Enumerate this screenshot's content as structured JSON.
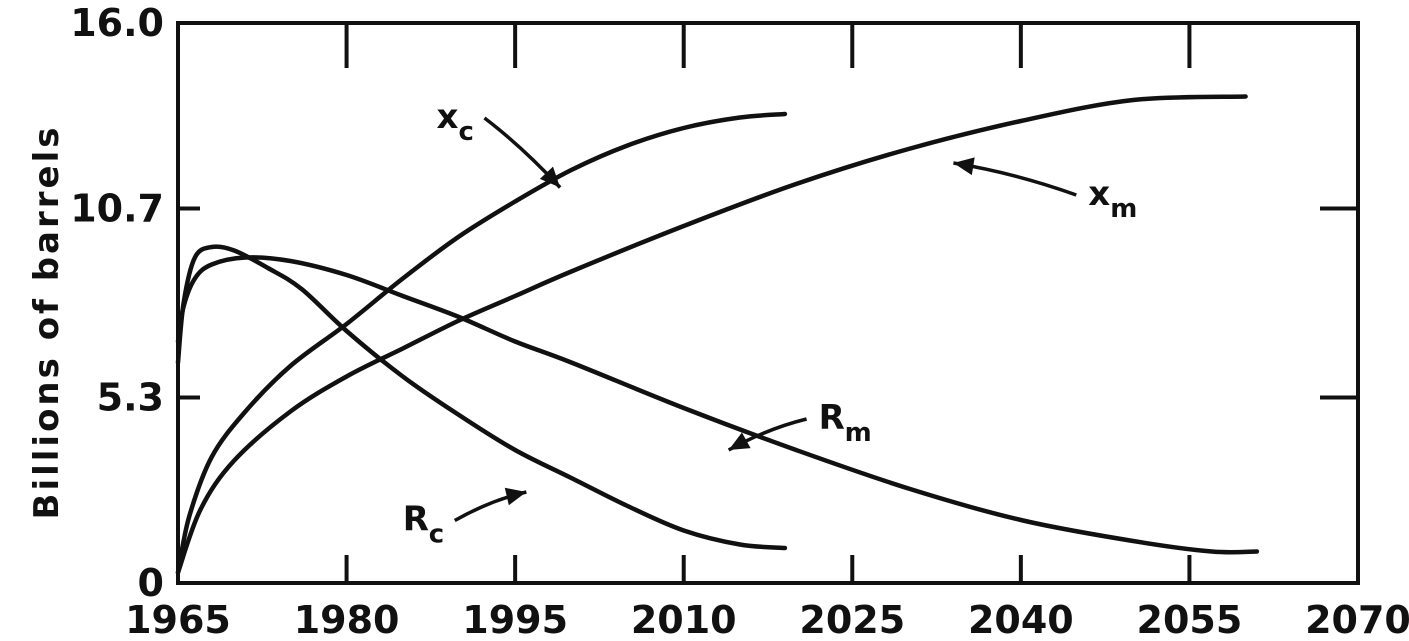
{
  "chart_data": {
    "type": "line",
    "title": "",
    "xlabel": "",
    "ylabel": "Billions of barrels",
    "xlim": [
      1965,
      2070
    ],
    "ylim": [
      0,
      16.0
    ],
    "x_ticks": [
      "1965",
      "1980",
      "1995",
      "2010",
      "2025",
      "2040",
      "2055",
      "2070"
    ],
    "y_ticks": [
      "0",
      "5.3",
      "10.7",
      "16.0"
    ],
    "grid": false,
    "legend": "none",
    "series": [
      {
        "name": "x_c",
        "label_main": "x",
        "label_sub": "c",
        "x": [
          1965,
          1966,
          1968,
          1971,
          1975,
          1980,
          1985,
          1990,
          1995,
          2000,
          2005,
          2010,
          2015,
          2019
        ],
        "y": [
          0.3,
          1.9,
          3.6,
          4.9,
          6.2,
          7.4,
          8.7,
          9.9,
          10.9,
          11.8,
          12.5,
          13.0,
          13.3,
          13.4
        ]
      },
      {
        "name": "x_m",
        "label_main": "x",
        "label_sub": "m",
        "x": [
          1965,
          1967,
          1970,
          1975,
          1980,
          1985,
          1990,
          1995,
          2000,
          2010,
          2020,
          2030,
          2040,
          2050,
          2060
        ],
        "y": [
          0.3,
          2.1,
          3.5,
          4.9,
          5.9,
          6.7,
          7.5,
          8.2,
          8.9,
          10.2,
          11.4,
          12.4,
          13.2,
          13.8,
          13.9
        ]
      },
      {
        "name": "R_c",
        "label_main": "R",
        "label_sub": "c",
        "x": [
          1965,
          1965.5,
          1966.5,
          1968,
          1970,
          1973,
          1976,
          1980,
          1985,
          1990,
          1995,
          2000,
          2005,
          2010,
          2015,
          2019
        ],
        "y": [
          6.3,
          8.0,
          9.3,
          9.6,
          9.5,
          9.0,
          8.4,
          7.2,
          5.9,
          4.8,
          3.8,
          3.0,
          2.2,
          1.5,
          1.1,
          1.0
        ]
      },
      {
        "name": "R_m",
        "label_main": "R",
        "label_sub": "m",
        "x": [
          1965,
          1965.5,
          1966.5,
          1968,
          1971,
          1975,
          1980,
          1985,
          1990,
          1995,
          2000,
          2010,
          2020,
          2030,
          2040,
          2050,
          2057,
          2061
        ],
        "y": [
          6.9,
          7.9,
          8.7,
          9.1,
          9.3,
          9.2,
          8.8,
          8.2,
          7.6,
          6.9,
          6.3,
          5.0,
          3.8,
          2.7,
          1.8,
          1.2,
          0.9,
          0.9
        ]
      }
    ],
    "annotations": [
      {
        "series": "x_c",
        "text_x": 1988,
        "text_y": 13.0,
        "tip_x": 1999,
        "tip_y": 11.3
      },
      {
        "series": "x_m",
        "text_x": 2046,
        "text_y": 10.8,
        "tip_x": 2034,
        "tip_y": 12.0
      },
      {
        "series": "R_m",
        "text_x": 2022,
        "text_y": 4.4,
        "tip_x": 2014,
        "tip_y": 3.8
      },
      {
        "series": "R_c",
        "text_x": 1985,
        "text_y": 1.5,
        "tip_x": 1996,
        "tip_y": 2.6
      }
    ]
  }
}
